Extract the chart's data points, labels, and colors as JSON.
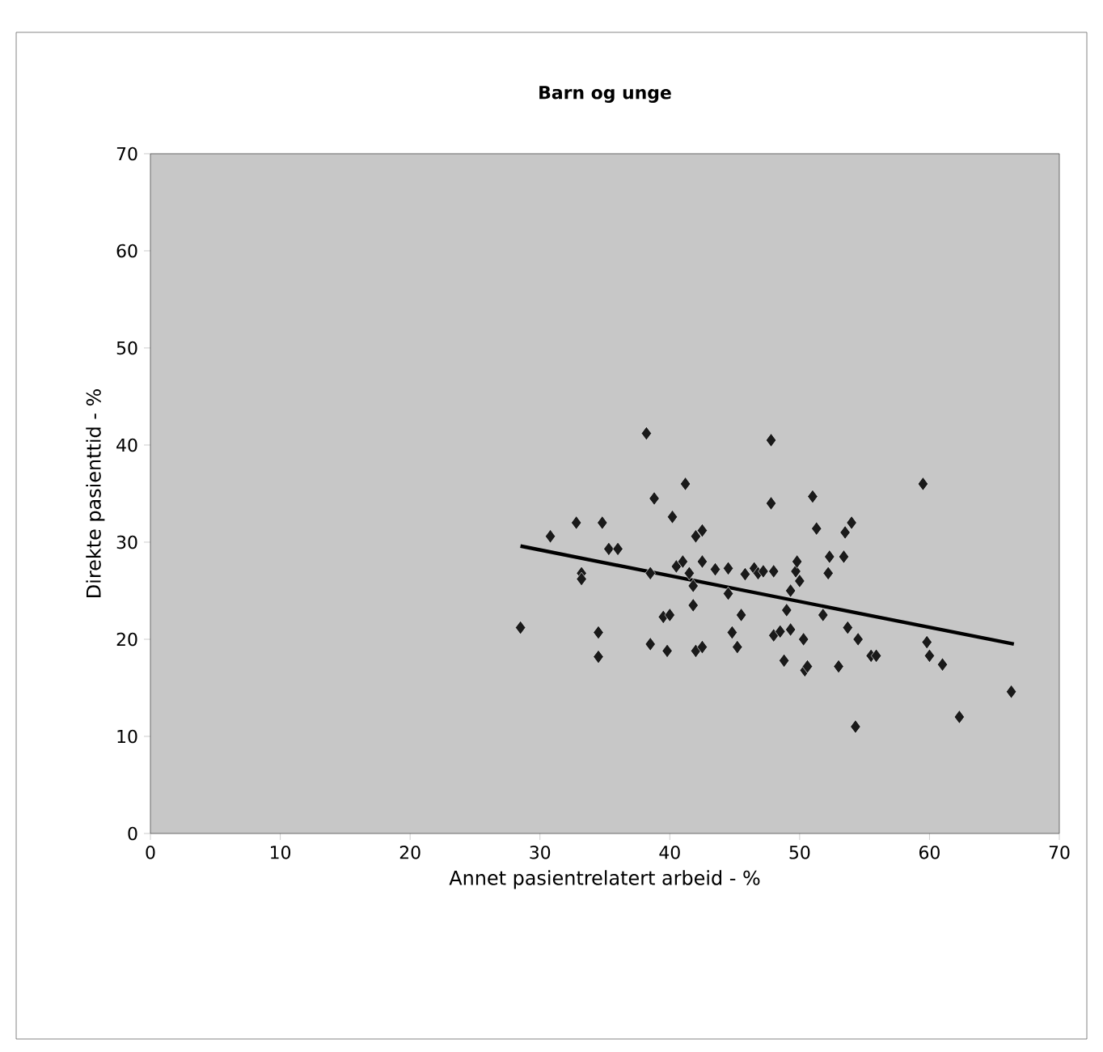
{
  "chart_data": {
    "type": "scatter",
    "title": "Barn og unge",
    "xlabel": "Annet pasientrelatert arbeid - %",
    "ylabel": "Direkte pasienttid - %",
    "xlim": [
      0,
      70
    ],
    "ylim": [
      0,
      70
    ],
    "xticks": [
      0,
      10,
      20,
      30,
      40,
      50,
      60,
      70
    ],
    "yticks": [
      0,
      10,
      20,
      30,
      40,
      50,
      60,
      70
    ],
    "grid": false,
    "marker": "diamond",
    "series": [
      {
        "color": "#1a1a1a",
        "x": [
          28.5,
          30.8,
          32.8,
          33.2,
          33.2,
          34.5,
          34.5,
          34.8,
          35.3,
          36,
          38.2,
          38.5,
          38.5,
          38.8,
          39.5,
          40,
          39.8,
          40.2,
          40.5,
          41,
          41.2,
          41.5,
          41.8,
          41.8,
          42,
          42.5,
          42,
          42.5,
          42.5,
          43.5,
          44.5,
          44.5,
          44.8,
          45.2,
          45.5,
          45.8,
          46.5,
          46.8,
          47.2,
          47.8,
          47.8,
          48,
          48,
          48.5,
          48.8,
          49,
          49.3,
          49.3,
          49.7,
          49.8,
          50,
          50.3,
          50.4,
          50.6,
          51,
          51.3,
          51.8,
          52.2,
          52.3,
          53,
          53.4,
          53.5,
          53.7,
          54,
          54.5,
          54.3,
          55.5,
          55.9,
          59.5,
          59.8,
          60,
          61,
          62.3,
          66.3
        ],
        "values": [
          21.2,
          30.6,
          32,
          26.8,
          26.2,
          18.2,
          20.7,
          32,
          29.3,
          29.3,
          41.2,
          19.5,
          26.8,
          34.5,
          22.3,
          22.5,
          18.8,
          32.6,
          27.5,
          28,
          36,
          26.8,
          25.5,
          23.5,
          30.6,
          31.2,
          18.8,
          19.2,
          28,
          27.2,
          27.3,
          24.7,
          20.7,
          19.2,
          22.5,
          26.7,
          27.3,
          26.8,
          27,
          40.5,
          34,
          27,
          20.4,
          20.8,
          17.8,
          23,
          21,
          25,
          27,
          28,
          26,
          20,
          16.8,
          17.2,
          34.7,
          31.4,
          22.5,
          26.8,
          28.5,
          17.2,
          28.5,
          31,
          21.2,
          32,
          20,
          11,
          18.3,
          18.3,
          36,
          19.7,
          18.3,
          17.4,
          12,
          14.6
        ]
      },
      {
        "type": "line",
        "color": "#000000",
        "marker": "none",
        "x": [
          28.5,
          66.5
        ],
        "values": [
          29.6,
          19.5
        ]
      }
    ]
  }
}
